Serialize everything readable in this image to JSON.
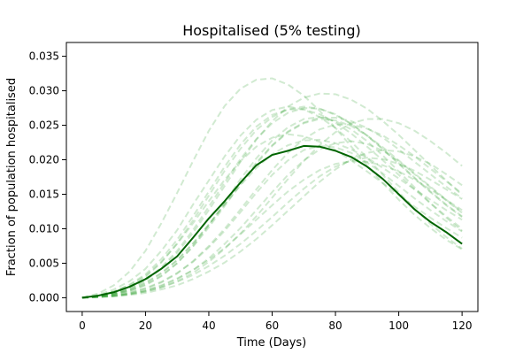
{
  "chart_data": {
    "type": "line",
    "title": "Hospitalised (5% testing)",
    "xlabel": "Time (Days)",
    "ylabel": "Fraction of population hospitalised",
    "xlim": [
      -5,
      125
    ],
    "ylim": [
      -0.002,
      0.037
    ],
    "x_ticks": [
      0,
      20,
      40,
      60,
      80,
      100,
      120
    ],
    "y_ticks": [
      0.0,
      0.005,
      0.01,
      0.015,
      0.02,
      0.025,
      0.03,
      0.035
    ],
    "x_tick_labels": [
      "0",
      "20",
      "40",
      "60",
      "80",
      "100",
      "120"
    ],
    "y_tick_labels": [
      "0.000",
      "0.005",
      "0.010",
      "0.015",
      "0.020",
      "0.025",
      "0.030",
      "0.035"
    ],
    "grid": false,
    "legend": "none",
    "colors": {
      "mean_line": "#006400",
      "simulation_line": "#2ca02c"
    },
    "mean": {
      "x": [
        0,
        5,
        10,
        15,
        20,
        25,
        30,
        35,
        40,
        45,
        50,
        55,
        60,
        65,
        70,
        75,
        80,
        85,
        90,
        95,
        100,
        105,
        110,
        115,
        120
      ],
      "y": [
        0.0,
        0.0003,
        0.0008,
        0.0016,
        0.0027,
        0.0042,
        0.006,
        0.0087,
        0.0115,
        0.014,
        0.0167,
        0.0192,
        0.0207,
        0.0213,
        0.022,
        0.0219,
        0.0213,
        0.0204,
        0.019,
        0.0172,
        0.015,
        0.0128,
        0.011,
        0.0095,
        0.0078
      ]
    },
    "simulation_style": {
      "dash": "dashed",
      "opacity": 0.22
    },
    "series": [
      {
        "x": [
          0,
          5,
          10,
          15,
          20,
          25,
          30,
          35,
          40,
          45,
          50,
          55,
          60,
          65,
          70,
          75,
          80,
          85,
          90,
          95,
          100,
          105,
          110,
          115,
          120
        ],
        "values": [
          0,
          0.0004,
          0.0012,
          0.0024,
          0.0042,
          0.0068,
          0.0098,
          0.0135,
          0.017,
          0.0205,
          0.0235,
          0.0258,
          0.0272,
          0.0277,
          0.0273,
          0.0262,
          0.0246,
          0.0226,
          0.0203,
          0.0178,
          0.0153,
          0.0129,
          0.0107,
          0.0088,
          0.0071
        ]
      },
      {
        "x": [
          0,
          5,
          10,
          15,
          20,
          25,
          30,
          35,
          40,
          45,
          50,
          55,
          60,
          65,
          70,
          75,
          80,
          85,
          90,
          95,
          100,
          105,
          110,
          115,
          120
        ],
        "values": [
          0,
          0.0002,
          0.0005,
          0.001,
          0.0018,
          0.0031,
          0.005,
          0.0075,
          0.0105,
          0.0138,
          0.0172,
          0.0202,
          0.0228,
          0.0247,
          0.0259,
          0.0262,
          0.0256,
          0.0244,
          0.0227,
          0.0206,
          0.0183,
          0.016,
          0.0137,
          0.0116,
          0.0097
        ]
      },
      {
        "x": [
          0,
          5,
          10,
          15,
          20,
          25,
          30,
          35,
          40,
          45,
          50,
          55,
          60,
          65,
          70,
          75,
          80,
          85,
          90,
          95,
          100,
          105,
          110,
          115,
          120
        ],
        "values": [
          0,
          0.0006,
          0.0018,
          0.0038,
          0.0068,
          0.0108,
          0.0152,
          0.0198,
          0.0242,
          0.0278,
          0.0303,
          0.0316,
          0.0318,
          0.0309,
          0.0293,
          0.0271,
          0.0246,
          0.0219,
          0.0192,
          0.0166,
          0.0142,
          0.012,
          0.0101,
          0.0084,
          0.007
        ]
      },
      {
        "x": [
          0,
          5,
          10,
          15,
          20,
          25,
          30,
          35,
          40,
          45,
          50,
          55,
          60,
          65,
          70,
          75,
          80,
          85,
          90,
          95,
          100,
          105,
          110,
          115,
          120
        ],
        "values": [
          0,
          0.0002,
          0.0004,
          0.0008,
          0.0014,
          0.0023,
          0.0036,
          0.0052,
          0.0073,
          0.0097,
          0.0124,
          0.0152,
          0.0178,
          0.0199,
          0.0214,
          0.022,
          0.0218,
          0.021,
          0.0196,
          0.018,
          0.0162,
          0.0144,
          0.0127,
          0.0111,
          0.0096
        ]
      },
      {
        "x": [
          0,
          5,
          10,
          15,
          20,
          25,
          30,
          35,
          40,
          45,
          50,
          55,
          60,
          65,
          70,
          75,
          80,
          85,
          90,
          95,
          100,
          105,
          110,
          115,
          120
        ],
        "values": [
          0,
          0.0003,
          0.0009,
          0.0019,
          0.0034,
          0.0056,
          0.0084,
          0.0118,
          0.0154,
          0.019,
          0.0222,
          0.0248,
          0.0265,
          0.0273,
          0.0273,
          0.0266,
          0.0254,
          0.0238,
          0.0219,
          0.0199,
          0.0178,
          0.0157,
          0.0137,
          0.0118,
          0.01
        ]
      },
      {
        "x": [
          0,
          5,
          10,
          15,
          20,
          25,
          30,
          35,
          40,
          45,
          50,
          55,
          60,
          65,
          70,
          75,
          80,
          85,
          90,
          95,
          100,
          105,
          110,
          115,
          120
        ],
        "values": [
          0,
          0.0001,
          0.0003,
          0.0006,
          0.001,
          0.0017,
          0.0027,
          0.004,
          0.0057,
          0.0078,
          0.0101,
          0.0127,
          0.0153,
          0.0178,
          0.0199,
          0.0215,
          0.0224,
          0.0227,
          0.0223,
          0.0213,
          0.0198,
          0.018,
          0.0161,
          0.0142,
          0.0124
        ]
      },
      {
        "x": [
          0,
          5,
          10,
          15,
          20,
          25,
          30,
          35,
          40,
          45,
          50,
          55,
          60,
          65,
          70,
          75,
          80,
          85,
          90,
          95,
          100,
          105,
          110,
          115,
          120
        ],
        "values": [
          0,
          0.0002,
          0.0006,
          0.0014,
          0.0026,
          0.0044,
          0.0068,
          0.0098,
          0.0132,
          0.0167,
          0.0201,
          0.023,
          0.0253,
          0.0268,
          0.0275,
          0.0274,
          0.0266,
          0.0252,
          0.0235,
          0.0215,
          0.0194,
          0.0173,
          0.0153,
          0.0134,
          0.0117
        ]
      },
      {
        "x": [
          0,
          5,
          10,
          15,
          20,
          25,
          30,
          35,
          40,
          45,
          50,
          55,
          60,
          65,
          70,
          75,
          80,
          85,
          90,
          95,
          100,
          105,
          110,
          115,
          120
        ],
        "values": [
          0,
          0.0001,
          0.0003,
          0.0005,
          0.0009,
          0.0015,
          0.0023,
          0.0033,
          0.0046,
          0.0061,
          0.0078,
          0.0097,
          0.0117,
          0.0138,
          0.0158,
          0.0176,
          0.019,
          0.0199,
          0.0203,
          0.0201,
          0.0194,
          0.0184,
          0.0171,
          0.0157,
          0.0143
        ]
      },
      {
        "x": [
          0,
          5,
          10,
          15,
          20,
          25,
          30,
          35,
          40,
          45,
          50,
          55,
          60,
          65,
          70,
          75,
          80,
          85,
          90,
          95,
          100,
          105,
          110,
          115,
          120
        ],
        "values": [
          0,
          0.0002,
          0.0007,
          0.0016,
          0.003,
          0.0051,
          0.0079,
          0.0112,
          0.0148,
          0.0184,
          0.0216,
          0.0243,
          0.0262,
          0.0273,
          0.0277,
          0.0274,
          0.0265,
          0.0252,
          0.0235,
          0.0216,
          0.0195,
          0.0174,
          0.0154,
          0.0135,
          0.0118
        ]
      },
      {
        "x": [
          0,
          5,
          10,
          15,
          20,
          25,
          30,
          35,
          40,
          45,
          50,
          55,
          60,
          65,
          70,
          75,
          80,
          85,
          90,
          95,
          100,
          105,
          110,
          115,
          120
        ],
        "values": [
          0,
          0.0002,
          0.0005,
          0.001,
          0.0019,
          0.0032,
          0.005,
          0.0074,
          0.0102,
          0.0133,
          0.0164,
          0.0194,
          0.022,
          0.024,
          0.0253,
          0.0259,
          0.0257,
          0.0249,
          0.0235,
          0.0218,
          0.0199,
          0.0179,
          0.016,
          0.0141,
          0.0123
        ]
      },
      {
        "x": [
          0,
          5,
          10,
          15,
          20,
          25,
          30,
          35,
          40,
          45,
          50,
          55,
          60,
          65,
          70,
          75,
          80,
          85,
          90,
          95,
          100,
          105,
          110,
          115,
          120
        ],
        "values": [
          0,
          0.0001,
          0.0002,
          0.0004,
          0.0007,
          0.0012,
          0.0018,
          0.0027,
          0.0038,
          0.0051,
          0.0067,
          0.0085,
          0.0105,
          0.0126,
          0.0147,
          0.0168,
          0.0186,
          0.0201,
          0.021,
          0.0214,
          0.0212,
          0.0205,
          0.0194,
          0.0179,
          0.0163
        ]
      },
      {
        "x": [
          0,
          5,
          10,
          15,
          20,
          25,
          30,
          35,
          40,
          45,
          50,
          55,
          60,
          65,
          70,
          75,
          80,
          85,
          90,
          95,
          100,
          105,
          110,
          115,
          120
        ],
        "values": [
          0,
          0.0003,
          0.0009,
          0.0018,
          0.0032,
          0.0052,
          0.0078,
          0.0108,
          0.014,
          0.0171,
          0.0198,
          0.0219,
          0.0232,
          0.0237,
          0.0234,
          0.0226,
          0.0214,
          0.0199,
          0.0183,
          0.0166,
          0.0149,
          0.0132,
          0.0116,
          0.0101,
          0.0087
        ]
      },
      {
        "x": [
          0,
          5,
          10,
          15,
          20,
          25,
          30,
          35,
          40,
          45,
          50,
          55,
          60,
          65,
          70,
          75,
          80,
          85,
          90,
          95,
          100,
          105,
          110,
          115,
          120
        ],
        "values": [
          0,
          0.0001,
          0.0003,
          0.0007,
          0.0013,
          0.0022,
          0.0035,
          0.0053,
          0.0075,
          0.01,
          0.0128,
          0.0157,
          0.0185,
          0.021,
          0.023,
          0.0244,
          0.0251,
          0.0251,
          0.0245,
          0.0235,
          0.0221,
          0.0205,
          0.0187,
          0.0169,
          0.0151
        ]
      },
      {
        "x": [
          0,
          5,
          10,
          15,
          20,
          25,
          30,
          35,
          40,
          45,
          50,
          55,
          60,
          65,
          70,
          75,
          80,
          85,
          90,
          95,
          100,
          105,
          110,
          115,
          120
        ],
        "values": [
          0,
          0.0002,
          0.0006,
          0.0012,
          0.0022,
          0.0036,
          0.0055,
          0.0079,
          0.0106,
          0.0135,
          0.0163,
          0.0188,
          0.0208,
          0.0221,
          0.0228,
          0.0229,
          0.0224,
          0.0215,
          0.0203,
          0.0188,
          0.0173,
          0.0157,
          0.0142,
          0.0127,
          0.0113
        ]
      },
      {
        "x": [
          0,
          5,
          10,
          15,
          20,
          25,
          30,
          35,
          40,
          45,
          50,
          55,
          60,
          65,
          70,
          75,
          80,
          85,
          90,
          95,
          100,
          105,
          110,
          115,
          120
        ],
        "values": [
          0,
          0.0001,
          0.0002,
          0.0005,
          0.0009,
          0.0015,
          0.0024,
          0.0036,
          0.0052,
          0.0071,
          0.0093,
          0.0118,
          0.0145,
          0.0172,
          0.0198,
          0.0221,
          0.024,
          0.0253,
          0.0259,
          0.0259,
          0.0253,
          0.0242,
          0.0227,
          0.021,
          0.0191
        ]
      },
      {
        "x": [
          0,
          5,
          10,
          15,
          20,
          25,
          30,
          35,
          40,
          45,
          50,
          55,
          60,
          65,
          70,
          75,
          80,
          85,
          90,
          95,
          100,
          105,
          110,
          115,
          120
        ],
        "values": [
          0,
          0.0002,
          0.0005,
          0.0011,
          0.0021,
          0.0035,
          0.0054,
          0.0078,
          0.0106,
          0.0136,
          0.0167,
          0.0196,
          0.0221,
          0.0241,
          0.0254,
          0.0261,
          0.0261,
          0.0256,
          0.0246,
          0.0232,
          0.0215,
          0.0197,
          0.0179,
          0.0161,
          0.0144
        ]
      },
      {
        "x": [
          0,
          5,
          10,
          15,
          20,
          25,
          30,
          35,
          40,
          45,
          50,
          55,
          60,
          65,
          70,
          75,
          80,
          85,
          90,
          95,
          100,
          105,
          110,
          115,
          120
        ],
        "values": [
          0,
          0.0001,
          0.0003,
          0.0006,
          0.0011,
          0.0018,
          0.0028,
          0.004,
          0.0055,
          0.0072,
          0.0092,
          0.0113,
          0.0134,
          0.0154,
          0.0171,
          0.0185,
          0.0194,
          0.0198,
          0.0197,
          0.0192,
          0.0183,
          0.0171,
          0.0157,
          0.0142,
          0.0127
        ]
      },
      {
        "x": [
          0,
          5,
          10,
          15,
          20,
          25,
          30,
          35,
          40,
          45,
          50,
          55,
          60,
          65,
          70,
          75,
          80,
          85,
          90,
          95,
          100,
          105,
          110,
          115,
          120
        ],
        "values": [
          0,
          0.0002,
          0.0006,
          0.0013,
          0.0025,
          0.0042,
          0.0065,
          0.0094,
          0.0127,
          0.0162,
          0.0197,
          0.0229,
          0.0256,
          0.0277,
          0.029,
          0.0296,
          0.0295,
          0.0287,
          0.0274,
          0.0256,
          0.0236,
          0.0214,
          0.0192,
          0.017,
          0.0149
        ]
      }
    ]
  }
}
